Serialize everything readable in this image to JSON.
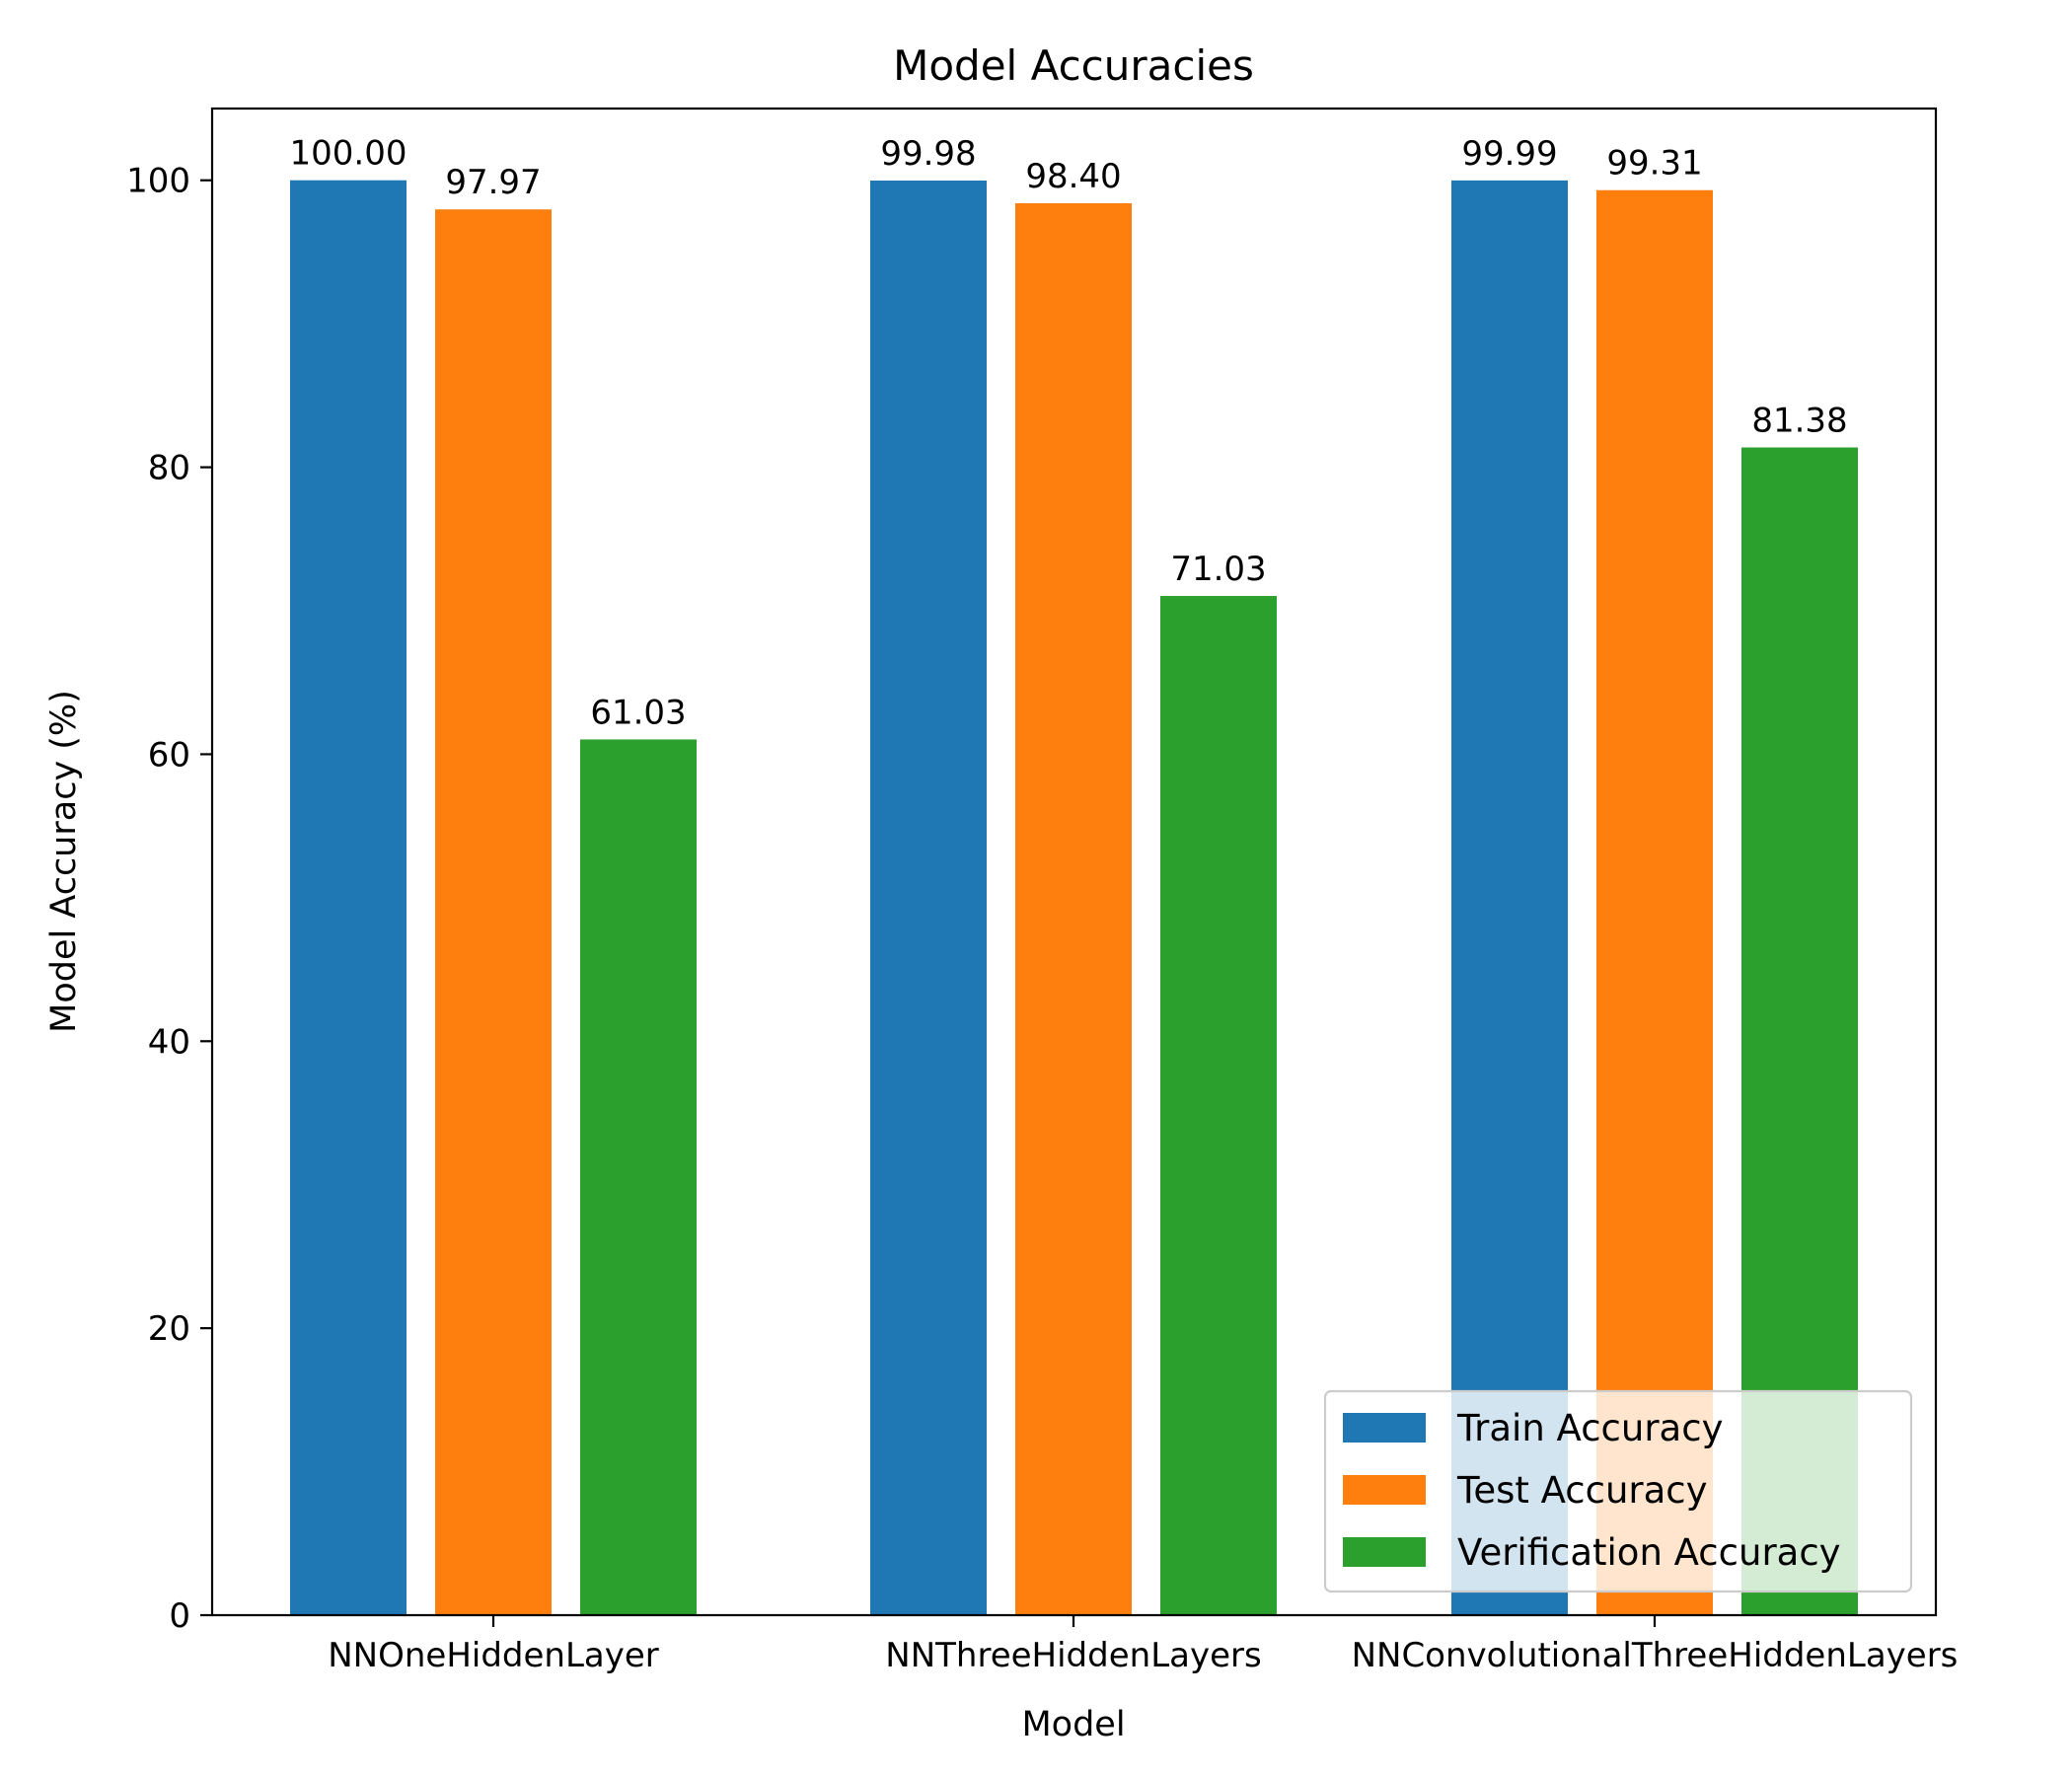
{
  "chart_data": {
    "type": "bar",
    "title": "Model Accuracies",
    "xlabel": "Model",
    "ylabel": "Model Accuracy (%)",
    "categories": [
      "NNOneHiddenLayer",
      "NNThreeHiddenLayers",
      "NNConvolutionalThreeHiddenLayers"
    ],
    "series": [
      {
        "name": "Train Accuracy",
        "color": "#1f77b4",
        "values": [
          100.0,
          99.98,
          99.99
        ],
        "labels": [
          "100.00",
          "99.98",
          "99.99"
        ]
      },
      {
        "name": "Test Accuracy",
        "color": "#ff7f0e",
        "values": [
          97.97,
          98.4,
          99.31
        ],
        "labels": [
          "97.97",
          "98.40",
          "99.31"
        ]
      },
      {
        "name": "Verification Accuracy",
        "color": "#2ca02c",
        "values": [
          61.03,
          71.03,
          81.38
        ],
        "labels": [
          "61.03",
          "71.03",
          "81.38"
        ]
      }
    ],
    "ylim": [
      0,
      105
    ],
    "yticks": [
      0,
      20,
      40,
      60,
      80,
      100
    ],
    "grid": false,
    "legend": "lower-right"
  }
}
